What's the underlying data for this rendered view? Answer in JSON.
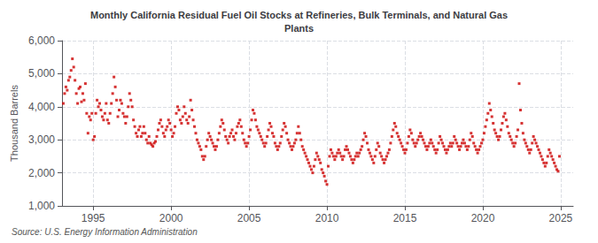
{
  "chart_data": {
    "type": "scatter",
    "title": "Monthly California Residual Fuel Oil Stocks at Refineries, Bulk Terminals, and Natural Gas\nPlants",
    "ylabel": "Thousand Barrels",
    "annotations": [
      "Source: U.S. Energy Information Administration"
    ],
    "color": "#cc0000",
    "marker": "square",
    "grid": true,
    "xlim": [
      1993.0,
      2025.8
    ],
    "xticks": [
      1995,
      2000,
      2005,
      2010,
      2015,
      2020,
      2025
    ],
    "ylim": [
      1000,
      6000
    ],
    "yticks": [
      {
        "value": 1000,
        "label": "1,000"
      },
      {
        "value": 2000,
        "label": "2,000"
      },
      {
        "value": 3000,
        "label": "3,000"
      },
      {
        "value": 4000,
        "label": "4,000"
      },
      {
        "value": 5000,
        "label": "5,000"
      },
      {
        "value": 6000,
        "label": "6,000"
      }
    ],
    "x": [
      1993.083,
      1993.167,
      1993.25,
      1993.333,
      1993.417,
      1993.5,
      1993.583,
      1993.667,
      1993.75,
      1993.833,
      1993.917,
      1994.0,
      1994.083,
      1994.167,
      1994.25,
      1994.333,
      1994.417,
      1994.5,
      1994.583,
      1994.667,
      1994.75,
      1994.833,
      1994.917,
      1995.0,
      1995.083,
      1995.167,
      1995.25,
      1995.333,
      1995.417,
      1995.5,
      1995.583,
      1995.667,
      1995.75,
      1995.833,
      1995.917,
      1996.0,
      1996.083,
      1996.167,
      1996.25,
      1996.333,
      1996.417,
      1996.5,
      1996.583,
      1996.667,
      1996.75,
      1996.833,
      1996.917,
      1997.0,
      1997.083,
      1997.167,
      1997.25,
      1997.333,
      1997.417,
      1997.5,
      1997.583,
      1997.667,
      1997.75,
      1997.833,
      1997.917,
      1998.0,
      1998.083,
      1998.167,
      1998.25,
      1998.333,
      1998.417,
      1998.5,
      1998.583,
      1998.667,
      1998.75,
      1998.833,
      1998.917,
      1999.0,
      1999.083,
      1999.167,
      1999.25,
      1999.333,
      1999.417,
      1999.5,
      1999.583,
      1999.667,
      1999.75,
      1999.833,
      1999.917,
      2000.0,
      2000.083,
      2000.167,
      2000.25,
      2000.333,
      2000.417,
      2000.5,
      2000.583,
      2000.667,
      2000.75,
      2000.833,
      2000.917,
      2001.0,
      2001.083,
      2001.167,
      2001.25,
      2001.333,
      2001.417,
      2001.5,
      2001.583,
      2001.667,
      2001.75,
      2001.833,
      2001.917,
      2002.0,
      2002.083,
      2002.167,
      2002.25,
      2002.333,
      2002.417,
      2002.5,
      2002.583,
      2002.667,
      2002.75,
      2002.833,
      2002.917,
      2003.0,
      2003.083,
      2003.167,
      2003.25,
      2003.333,
      2003.417,
      2003.5,
      2003.583,
      2003.667,
      2003.75,
      2003.833,
      2003.917,
      2004.0,
      2004.083,
      2004.167,
      2004.25,
      2004.333,
      2004.417,
      2004.5,
      2004.583,
      2004.667,
      2004.75,
      2004.833,
      2004.917,
      2005.0,
      2005.083,
      2005.167,
      2005.25,
      2005.333,
      2005.417,
      2005.5,
      2005.583,
      2005.667,
      2005.75,
      2005.833,
      2005.917,
      2006.0,
      2006.083,
      2006.167,
      2006.25,
      2006.333,
      2006.417,
      2006.5,
      2006.583,
      2006.667,
      2006.75,
      2006.833,
      2006.917,
      2007.0,
      2007.083,
      2007.167,
      2007.25,
      2007.333,
      2007.417,
      2007.5,
      2007.583,
      2007.667,
      2007.75,
      2007.833,
      2007.917,
      2008.0,
      2008.083,
      2008.167,
      2008.25,
      2008.333,
      2008.417,
      2008.5,
      2008.583,
      2008.667,
      2008.75,
      2008.833,
      2008.917,
      2009.0,
      2009.083,
      2009.167,
      2009.25,
      2009.333,
      2009.417,
      2009.5,
      2009.583,
      2009.667,
      2009.75,
      2009.833,
      2009.917,
      2010.0,
      2010.083,
      2010.167,
      2010.25,
      2010.333,
      2010.417,
      2010.5,
      2010.583,
      2010.667,
      2010.75,
      2010.833,
      2010.917,
      2011.0,
      2011.083,
      2011.167,
      2011.25,
      2011.333,
      2011.417,
      2011.5,
      2011.583,
      2011.667,
      2011.75,
      2011.833,
      2011.917,
      2012.0,
      2012.083,
      2012.167,
      2012.25,
      2012.333,
      2012.417,
      2012.5,
      2012.583,
      2012.667,
      2012.75,
      2012.833,
      2012.917,
      2013.0,
      2013.083,
      2013.167,
      2013.25,
      2013.333,
      2013.417,
      2013.5,
      2013.583,
      2013.667,
      2013.75,
      2013.833,
      2013.917,
      2014.0,
      2014.083,
      2014.167,
      2014.25,
      2014.333,
      2014.417,
      2014.5,
      2014.583,
      2014.667,
      2014.75,
      2014.833,
      2014.917,
      2015.0,
      2015.083,
      2015.167,
      2015.25,
      2015.333,
      2015.417,
      2015.5,
      2015.583,
      2015.667,
      2015.75,
      2015.833,
      2015.917,
      2016.0,
      2016.083,
      2016.167,
      2016.25,
      2016.333,
      2016.417,
      2016.5,
      2016.583,
      2016.667,
      2016.75,
      2016.833,
      2016.917,
      2017.0,
      2017.083,
      2017.167,
      2017.25,
      2017.333,
      2017.417,
      2017.5,
      2017.583,
      2017.667,
      2017.75,
      2017.833,
      2017.917,
      2018.0,
      2018.083,
      2018.167,
      2018.25,
      2018.333,
      2018.417,
      2018.5,
      2018.583,
      2018.667,
      2018.75,
      2018.833,
      2018.917,
      2019.0,
      2019.083,
      2019.167,
      2019.25,
      2019.333,
      2019.417,
      2019.5,
      2019.583,
      2019.667,
      2019.75,
      2019.833,
      2019.917,
      2020.0,
      2020.083,
      2020.167,
      2020.25,
      2020.333,
      2020.417,
      2020.5,
      2020.583,
      2020.667,
      2020.75,
      2020.833,
      2020.917,
      2021.0,
      2021.083,
      2021.167,
      2021.25,
      2021.333,
      2021.417,
      2021.5,
      2021.583,
      2021.667,
      2021.75,
      2021.833,
      2021.917,
      2022.0,
      2022.083,
      2022.167,
      2022.25,
      2022.333,
      2022.417,
      2022.5,
      2022.583,
      2022.667,
      2022.75,
      2022.833,
      2022.917,
      2023.0,
      2023.083,
      2023.167,
      2023.25,
      2023.333,
      2023.417,
      2023.5,
      2023.583,
      2023.667,
      2023.75,
      2023.833,
      2023.917,
      2024.0,
      2024.083,
      2024.167,
      2024.25,
      2024.333,
      2024.417,
      2024.5,
      2024.583,
      2024.667,
      2024.75,
      2024.833,
      2024.917
    ],
    "values": [
      4100,
      4400,
      4600,
      4500,
      4800,
      4900,
      5100,
      5450,
      5200,
      4800,
      4400,
      4100,
      4550,
      4600,
      4150,
      4400,
      4200,
      4700,
      3800,
      3200,
      3700,
      3600,
      3800,
      3000,
      3100,
      3800,
      4200,
      4000,
      4100,
      3900,
      3700,
      3600,
      3800,
      4100,
      3600,
      3500,
      3800,
      4100,
      4400,
      4900,
      4600,
      4200,
      3700,
      3900,
      4200,
      4100,
      3800,
      3700,
      3500,
      3700,
      4000,
      4400,
      4200,
      4000,
      3600,
      3400,
      3200,
      3100,
      3300,
      3400,
      3100,
      3200,
      3400,
      3200,
      3000,
      2900,
      3100,
      2900,
      2850,
      2800,
      2900,
      2950,
      3100,
      3300,
      3500,
      3600,
      3400,
      3200,
      3100,
      3300,
      3400,
      3600,
      3500,
      3300,
      3100,
      3200,
      3400,
      3800,
      4000,
      3900,
      3600,
      3500,
      3700,
      4000,
      3800,
      3600,
      3500,
      3700,
      4200,
      3900,
      3600,
      3400,
      3200,
      3000,
      2900,
      2800,
      2700,
      2500,
      2400,
      2500,
      2800,
      3000,
      3200,
      3100,
      3000,
      2900,
      2800,
      2700,
      2800,
      3000,
      3200,
      3400,
      3600,
      3500,
      3300,
      3100,
      3000,
      2900,
      3100,
      3200,
      3300,
      3100,
      3000,
      3200,
      3400,
      3500,
      3600,
      3400,
      3200,
      3000,
      2900,
      2800,
      2900,
      3100,
      3300,
      3600,
      3900,
      3800,
      3600,
      3400,
      3300,
      3200,
      3100,
      3000,
      2900,
      2800,
      2900,
      3100,
      3300,
      3500,
      3400,
      3200,
      3100,
      2900,
      2800,
      2700,
      2800,
      2900,
      3100,
      3300,
      3500,
      3400,
      3200,
      3000,
      2900,
      2800,
      2700,
      2800,
      2900,
      3000,
      3200,
      3400,
      3200,
      3000,
      2800,
      2700,
      2600,
      2500,
      2400,
      2300,
      2200,
      2100,
      2000,
      2200,
      2400,
      2600,
      2500,
      2400,
      2300,
      2100,
      2000,
      1900,
      1750,
      1650,
      2200,
      2500,
      2700,
      2600,
      2500,
      2400,
      2500,
      2600,
      2700,
      2600,
      2500,
      2400,
      2500,
      2700,
      2800,
      2700,
      2600,
      2500,
      2400,
      2300,
      2400,
      2500,
      2600,
      2500,
      2600,
      2700,
      2800,
      3000,
      3200,
      3100,
      2900,
      2700,
      2600,
      2500,
      2400,
      2300,
      2500,
      2700,
      2900,
      2800,
      2600,
      2500,
      2400,
      2300,
      2400,
      2500,
      2600,
      2700,
      2900,
      3100,
      3300,
      3500,
      3400,
      3200,
      3100,
      3000,
      2900,
      2800,
      2700,
      2600,
      2700,
      2900,
      3100,
      3300,
      3200,
      3000,
      2900,
      2800,
      2900,
      3000,
      3100,
      3200,
      3100,
      3000,
      2900,
      2800,
      2700,
      2800,
      2900,
      3000,
      2900,
      2800,
      2700,
      2600,
      2700,
      2900,
      3100,
      3000,
      2900,
      2800,
      2700,
      2600,
      2700,
      2800,
      2900,
      2800,
      2900,
      3100,
      3000,
      2900,
      2800,
      2700,
      2800,
      2900,
      3000,
      2900,
      2800,
      2700,
      2800,
      3000,
      3200,
      3100,
      2900,
      2800,
      2700,
      2600,
      2700,
      2800,
      2900,
      3000,
      3200,
      3400,
      3600,
      3800,
      4100,
      3900,
      3700,
      3500,
      3300,
      3200,
      3100,
      3000,
      3100,
      3300,
      3500,
      3700,
      3800,
      3600,
      3400,
      3200,
      3100,
      3000,
      2900,
      2800,
      2900,
      3100,
      3300,
      4700,
      3900,
      3500,
      3200,
      3000,
      2900,
      2800,
      2700,
      2600,
      2700,
      2900,
      3100,
      3000,
      2900,
      2800,
      2700,
      2600,
      2500,
      2400,
      2300,
      2200,
      2300,
      2500,
      2700,
      2600,
      2500,
      2400,
      2300,
      2200,
      2100,
      2050,
      2500
    ]
  }
}
